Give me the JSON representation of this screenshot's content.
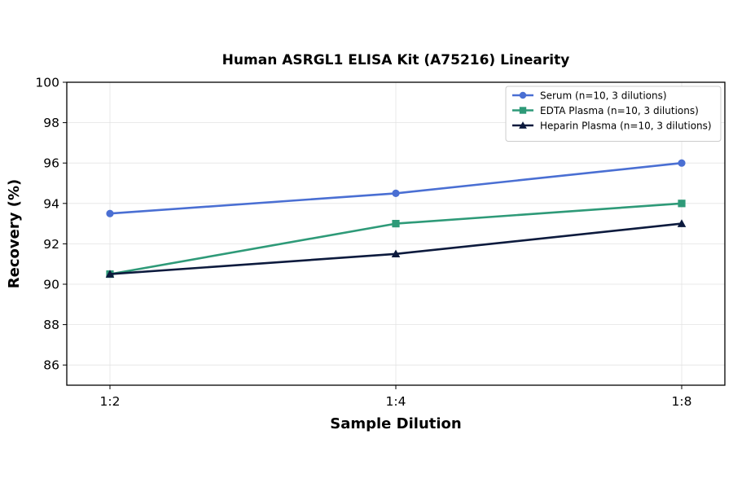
{
  "chart_data": {
    "type": "line",
    "title": "Human ASRGL1 ELISA Kit (A75216) Linearity",
    "xlabel": "Sample Dilution",
    "ylabel": "Recovery (%)",
    "categories": [
      "1:2",
      "1:4",
      "1:8"
    ],
    "ylim": [
      85,
      100
    ],
    "yticks": [
      86,
      88,
      90,
      92,
      94,
      96,
      98,
      100
    ],
    "grid": true,
    "legend_position": "top-right",
    "series": [
      {
        "name": "Serum (n=10, 3 dilutions)",
        "values": [
          93.5,
          94.5,
          96.0
        ],
        "color": "#4a6fd3",
        "marker": "circle"
      },
      {
        "name": "EDTA Plasma (n=10, 3 dilutions)",
        "values": [
          90.5,
          93.0,
          94.0
        ],
        "color": "#2e9a78",
        "marker": "square"
      },
      {
        "name": "Heparin Plasma (n=10, 3 dilutions)",
        "values": [
          90.5,
          91.5,
          93.0
        ],
        "color": "#0c1a3d",
        "marker": "triangle"
      }
    ]
  }
}
